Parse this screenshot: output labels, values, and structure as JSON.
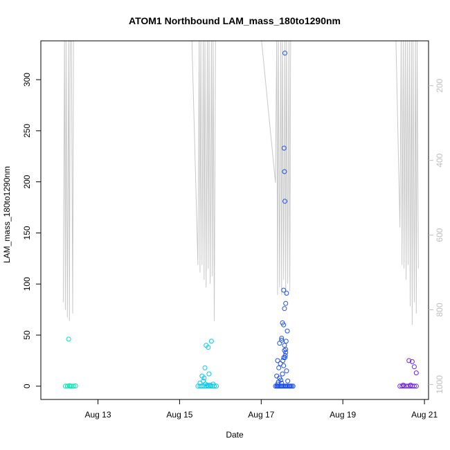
{
  "chart_data": {
    "type": "scatter",
    "title": "ATOM1 Northbound LAM_mass_180to1290nm",
    "xlabel": "Date",
    "ylabel": "LAM_mass_180to1290nm",
    "x_ticks": [
      "Aug 13",
      "Aug 15",
      "Aug 17",
      "Aug 19",
      "Aug 21"
    ],
    "x_tick_days": [
      13,
      15,
      17,
      19,
      21
    ],
    "xlim_days": [
      11.6,
      21.1
    ],
    "y_ticks": [
      0,
      50,
      100,
      150,
      200,
      250,
      300
    ],
    "ylim": [
      -13,
      338
    ],
    "y2_ticks": [
      200,
      400,
      600,
      800,
      1000
    ],
    "y2lim_reversed": [
      80,
      1040
    ],
    "colors": {
      "cluster1": "#00e6b0",
      "cluster2": "#00c8e8",
      "cluster3": "#1f50e6",
      "cluster4": "#6a1fe6",
      "altitude": "#c8c8c8"
    },
    "series": [
      {
        "color_key": "cluster1",
        "x_days": [
          12.2,
          12.25,
          12.3,
          12.35,
          12.4,
          12.45,
          12.28,
          12.32
        ],
        "y": [
          0,
          0,
          0.5,
          0,
          0,
          0.3,
          46,
          0
        ]
      },
      {
        "color_key": "cluster2",
        "x_days": [
          15.45,
          15.5,
          15.55,
          15.6,
          15.65,
          15.7,
          15.75,
          15.8,
          15.85,
          15.9,
          15.5,
          15.55,
          15.6,
          15.62,
          15.65,
          15.7,
          15.72,
          15.78,
          15.82,
          15.58,
          15.63,
          15.68,
          15.75
        ],
        "y": [
          0,
          0,
          0,
          0,
          0,
          0,
          0,
          0,
          0,
          0,
          3,
          10,
          8,
          18,
          40,
          38,
          12,
          44,
          2,
          5,
          2,
          1,
          1
        ]
      },
      {
        "color_key": "cluster3",
        "x_days": [
          17.35,
          17.38,
          17.4,
          17.42,
          17.45,
          17.48,
          17.5,
          17.52,
          17.55,
          17.58,
          17.6,
          17.62,
          17.65,
          17.68,
          17.7,
          17.72,
          17.75,
          17.78,
          17.4,
          17.42,
          17.45,
          17.48,
          17.5,
          17.52,
          17.55,
          17.58,
          17.6,
          17.62,
          17.65,
          17.4,
          17.45,
          17.5,
          17.55,
          17.6,
          17.38,
          17.43,
          17.47,
          17.53,
          17.57,
          17.61,
          17.64,
          17.5,
          17.52,
          17.55,
          17.57,
          17.59,
          17.6,
          17.62,
          17.55,
          17.57,
          17.58,
          17.56
        ],
        "y": [
          0,
          0,
          0,
          0,
          0,
          0,
          0,
          0,
          0,
          0,
          0,
          0,
          0,
          0,
          0,
          0,
          0,
          0,
          2,
          4,
          8,
          6,
          3,
          12,
          20,
          28,
          33,
          15,
          5,
          25,
          42,
          45,
          28,
          36,
          10,
          18,
          22,
          25,
          35,
          44,
          54,
          47,
          62,
          60,
          40,
          30,
          81,
          91,
          94,
          76,
          181,
          233
        ],
        "extra_y_high": [
          210,
          326
        ]
      },
      {
        "color_key": "cluster4",
        "x_days": [
          20.4,
          20.45,
          20.5,
          20.55,
          20.6,
          20.65,
          20.7,
          20.75,
          20.8,
          20.48,
          20.62,
          20.7,
          20.75,
          20.8,
          20.66
        ],
        "y": [
          0,
          0,
          0,
          0,
          0,
          0,
          0,
          0,
          0,
          1,
          25,
          24,
          19,
          13,
          1
        ]
      }
    ],
    "altitude_series": {
      "name": "",
      "x_days": [
        12.15,
        12.18,
        12.2,
        12.22,
        12.25,
        12.28,
        12.3,
        12.32,
        12.35,
        12.38,
        12.4,
        12.42,
        12.45,
        12.5,
        12.6,
        12.7,
        12.8,
        12.9,
        13.0,
        13.1,
        13.3,
        13.6,
        14.0,
        14.4,
        14.8,
        15.1,
        15.3,
        15.45,
        15.48,
        15.5,
        15.52,
        15.55,
        15.58,
        15.6,
        15.62,
        15.65,
        15.68,
        15.7,
        15.72,
        15.75,
        15.78,
        15.8,
        15.82,
        15.85,
        15.88,
        15.9,
        16.2,
        16.6,
        17.0,
        17.35,
        17.38,
        17.4,
        17.42,
        17.45,
        17.48,
        17.5,
        17.52,
        17.55,
        17.58,
        17.6,
        17.62,
        17.65,
        17.68,
        17.7,
        17.72,
        17.75,
        17.78,
        17.8,
        18.2,
        18.6,
        19.0,
        19.4,
        19.8,
        20.1,
        20.3,
        20.4,
        20.43,
        20.45,
        20.48,
        20.5,
        20.53,
        20.55,
        20.58,
        20.6,
        20.63,
        20.65,
        20.68,
        20.7,
        20.72,
        20.75,
        20.78,
        20.8,
        20.82,
        20.85
      ],
      "y2": [
        780,
        70,
        800,
        70,
        820,
        70,
        830,
        70,
        70,
        810,
        70,
        70,
        70,
        70,
        70,
        70,
        70,
        70,
        70,
        70,
        70,
        70,
        70,
        70,
        70,
        70,
        70,
        680,
        70,
        700,
        70,
        680,
        70,
        720,
        70,
        740,
        70,
        690,
        70,
        730,
        70,
        710,
        70,
        830,
        70,
        70,
        70,
        70,
        70,
        460,
        70,
        760,
        70,
        740,
        70,
        760,
        70,
        720,
        70,
        760,
        70,
        730,
        70,
        750,
        70,
        70,
        70,
        70,
        70,
        70,
        70,
        70,
        70,
        70,
        70,
        580,
        70,
        680,
        70,
        690,
        70,
        720,
        70,
        680,
        70,
        790,
        70,
        840,
        70,
        780,
        70,
        810,
        70,
        690
      ]
    }
  }
}
